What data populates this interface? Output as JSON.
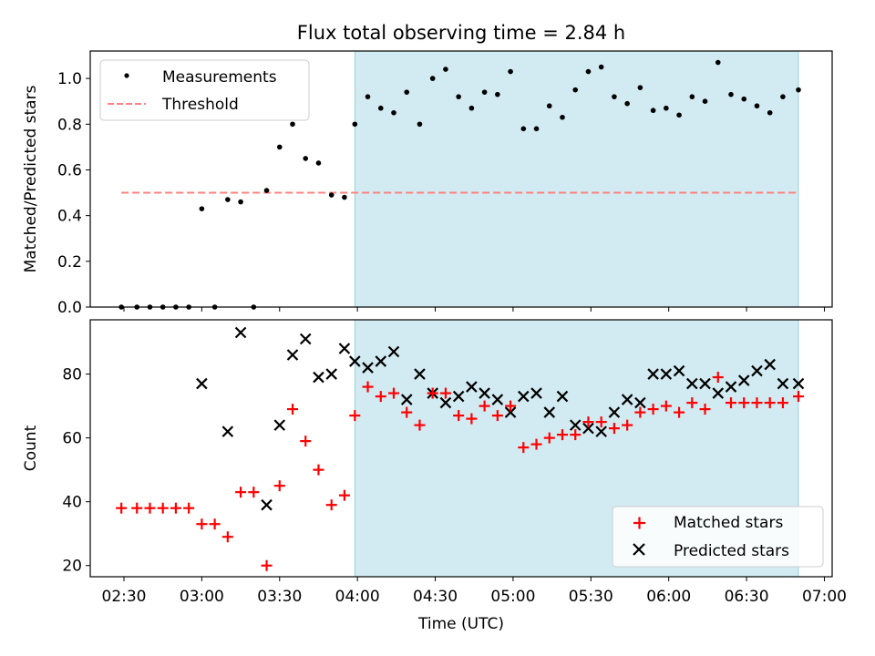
{
  "title": "Flux total observing time = 2.84 h",
  "colors": {
    "shade": "#add8e6",
    "threshold": "#ff8080",
    "matched": "#ff0000",
    "predicted": "#000000",
    "measurement": "#000000"
  },
  "chart_data": [
    {
      "type": "scatter",
      "ylabel": "Matched/Predicted stars",
      "ylim": [
        0,
        1.12
      ],
      "xlim": [
        "02:17",
        "07:03"
      ],
      "yticks": [
        0.0,
        0.2,
        0.4,
        0.6,
        0.8,
        1.0
      ],
      "ytick_labels": [
        "0.0",
        "0.2",
        "0.4",
        "0.6",
        "0.8",
        "1.0"
      ],
      "legend": {
        "placement": "top-left",
        "entries": [
          "Measurements",
          "Threshold"
        ]
      },
      "shaded_region": [
        "03:59",
        "06:50"
      ],
      "threshold": {
        "value": 0.5,
        "x": [
          "02:29",
          "06:50"
        ]
      },
      "series": [
        {
          "name": "Measurements",
          "x": [
            "02:29",
            "02:35",
            "02:40",
            "02:45",
            "02:50",
            "02:55",
            "03:00",
            "03:05",
            "03:10",
            "03:15",
            "03:20",
            "03:25",
            "03:30",
            "03:35",
            "03:40",
            "03:45",
            "03:50",
            "03:55",
            "03:59",
            "04:04",
            "04:09",
            "04:14",
            "04:19",
            "04:24",
            "04:29",
            "04:34",
            "04:39",
            "04:44",
            "04:49",
            "04:54",
            "04:59",
            "05:04",
            "05:09",
            "05:14",
            "05:19",
            "05:24",
            "05:29",
            "05:34",
            "05:39",
            "05:44",
            "05:49",
            "05:54",
            "05:59",
            "06:04",
            "06:09",
            "06:14",
            "06:19",
            "06:24",
            "06:29",
            "06:34",
            "06:39",
            "06:44",
            "06:50"
          ],
          "y": [
            0.0,
            0.0,
            0.0,
            0.0,
            0.0,
            0.0,
            0.43,
            0.0,
            0.47,
            0.46,
            0.0,
            0.51,
            0.7,
            0.8,
            0.65,
            0.63,
            0.49,
            0.48,
            0.8,
            0.92,
            0.87,
            0.85,
            0.94,
            0.8,
            1.0,
            1.04,
            0.92,
            0.87,
            0.94,
            0.93,
            1.03,
            0.78,
            0.78,
            0.88,
            0.83,
            0.95,
            1.03,
            1.05,
            0.92,
            0.89,
            0.96,
            0.86,
            0.87,
            0.84,
            0.92,
            0.9,
            1.07,
            0.93,
            0.91,
            0.88,
            0.85,
            0.92,
            0.95
          ]
        }
      ]
    },
    {
      "type": "scatter",
      "ylabel": "Count",
      "xlabel": "Time (UTC)",
      "ylim": [
        16.5,
        97
      ],
      "xlim": [
        "02:17",
        "07:03"
      ],
      "yticks": [
        20,
        40,
        60,
        80
      ],
      "ytick_labels": [
        "20",
        "40",
        "60",
        "80"
      ],
      "xticks": [
        "02:30",
        "03:00",
        "03:30",
        "04:00",
        "04:30",
        "05:00",
        "05:30",
        "06:00",
        "06:30",
        "07:00"
      ],
      "xtick_labels": [
        "02:30",
        "03:00",
        "03:30",
        "04:00",
        "04:30",
        "05:00",
        "05:30",
        "06:00",
        "06:30",
        "07:00"
      ],
      "legend": {
        "placement": "bottom-right",
        "entries": [
          "Matched stars",
          "Predicted stars"
        ]
      },
      "shaded_region": [
        "03:59",
        "06:50"
      ],
      "series": [
        {
          "name": "Matched stars",
          "marker": "plus",
          "x": [
            "02:29",
            "02:35",
            "02:40",
            "02:45",
            "02:50",
            "02:55",
            "03:00",
            "03:05",
            "03:10",
            "03:15",
            "03:20",
            "03:25",
            "03:30",
            "03:35",
            "03:40",
            "03:45",
            "03:50",
            "03:55",
            "03:59",
            "04:04",
            "04:09",
            "04:14",
            "04:19",
            "04:24",
            "04:29",
            "04:34",
            "04:39",
            "04:44",
            "04:49",
            "04:54",
            "04:59",
            "05:04",
            "05:09",
            "05:14",
            "05:19",
            "05:24",
            "05:29",
            "05:34",
            "05:39",
            "05:44",
            "05:49",
            "05:54",
            "05:59",
            "06:04",
            "06:09",
            "06:14",
            "06:19",
            "06:24",
            "06:29",
            "06:34",
            "06:39",
            "06:44",
            "06:50"
          ],
          "y": [
            38,
            38,
            38,
            38,
            38,
            38,
            33,
            33,
            29,
            43,
            43,
            20,
            45,
            69,
            59,
            50,
            39,
            42,
            67,
            76,
            73,
            74,
            68,
            64,
            74,
            74,
            67,
            66,
            70,
            67,
            70,
            57,
            58,
            60,
            61,
            61,
            65,
            65,
            63,
            64,
            68,
            69,
            70,
            68,
            71,
            69,
            79,
            71,
            71,
            71,
            71,
            71,
            73
          ]
        },
        {
          "name": "Predicted stars",
          "marker": "x",
          "x": [
            "03:00",
            "03:10",
            "03:15",
            "03:25",
            "03:30",
            "03:35",
            "03:40",
            "03:45",
            "03:50",
            "03:55",
            "03:59",
            "04:04",
            "04:09",
            "04:14",
            "04:19",
            "04:24",
            "04:29",
            "04:34",
            "04:39",
            "04:44",
            "04:49",
            "04:54",
            "04:59",
            "05:04",
            "05:09",
            "05:14",
            "05:19",
            "05:24",
            "05:29",
            "05:34",
            "05:39",
            "05:44",
            "05:49",
            "05:54",
            "05:59",
            "06:04",
            "06:09",
            "06:14",
            "06:19",
            "06:24",
            "06:29",
            "06:34",
            "06:39",
            "06:44",
            "06:50"
          ],
          "y": [
            77,
            62,
            93,
            39,
            64,
            86,
            91,
            79,
            80,
            88,
            84,
            82,
            84,
            87,
            72,
            80,
            74,
            71,
            73,
            76,
            74,
            72,
            68,
            73,
            74,
            68,
            73,
            64,
            63,
            62,
            68,
            72,
            71,
            80,
            80,
            81,
            77,
            77,
            74,
            76,
            78,
            81,
            83,
            77,
            77
          ]
        }
      ]
    }
  ]
}
